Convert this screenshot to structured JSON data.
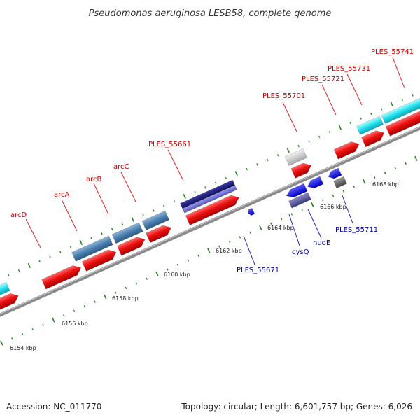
{
  "title": "Pseudomonas aeruginosa LESB58, complete genome",
  "footer": {
    "accession": "Accession: NC_011770",
    "summary": "Topology: circular; Length: 6,601,757 bp; Genes: 6,026"
  },
  "colors": {
    "backbone": "#888888",
    "cds": "#ee1111",
    "label_top": "#cc0000",
    "label_bottom": "#0000aa",
    "tick": "#228822"
  },
  "ticks": {
    "upper_track_labels": [
      "6168 kbp",
      "6166 kbp",
      "6164 kbp",
      "6162 kbp",
      "6160 kbp",
      "6158 kbp",
      "6156 kbp",
      "6154 kbp"
    ]
  },
  "labels": {
    "top": [
      "PLES_55741",
      "PLES_55731",
      "PLES_55721",
      "PLES_55701",
      "PLES_55661",
      "arcC",
      "arcB",
      "arcA",
      "arcD"
    ],
    "bottom": [
      "PLES_55711",
      "nudE",
      "cysQ",
      "PLES_55671"
    ]
  }
}
